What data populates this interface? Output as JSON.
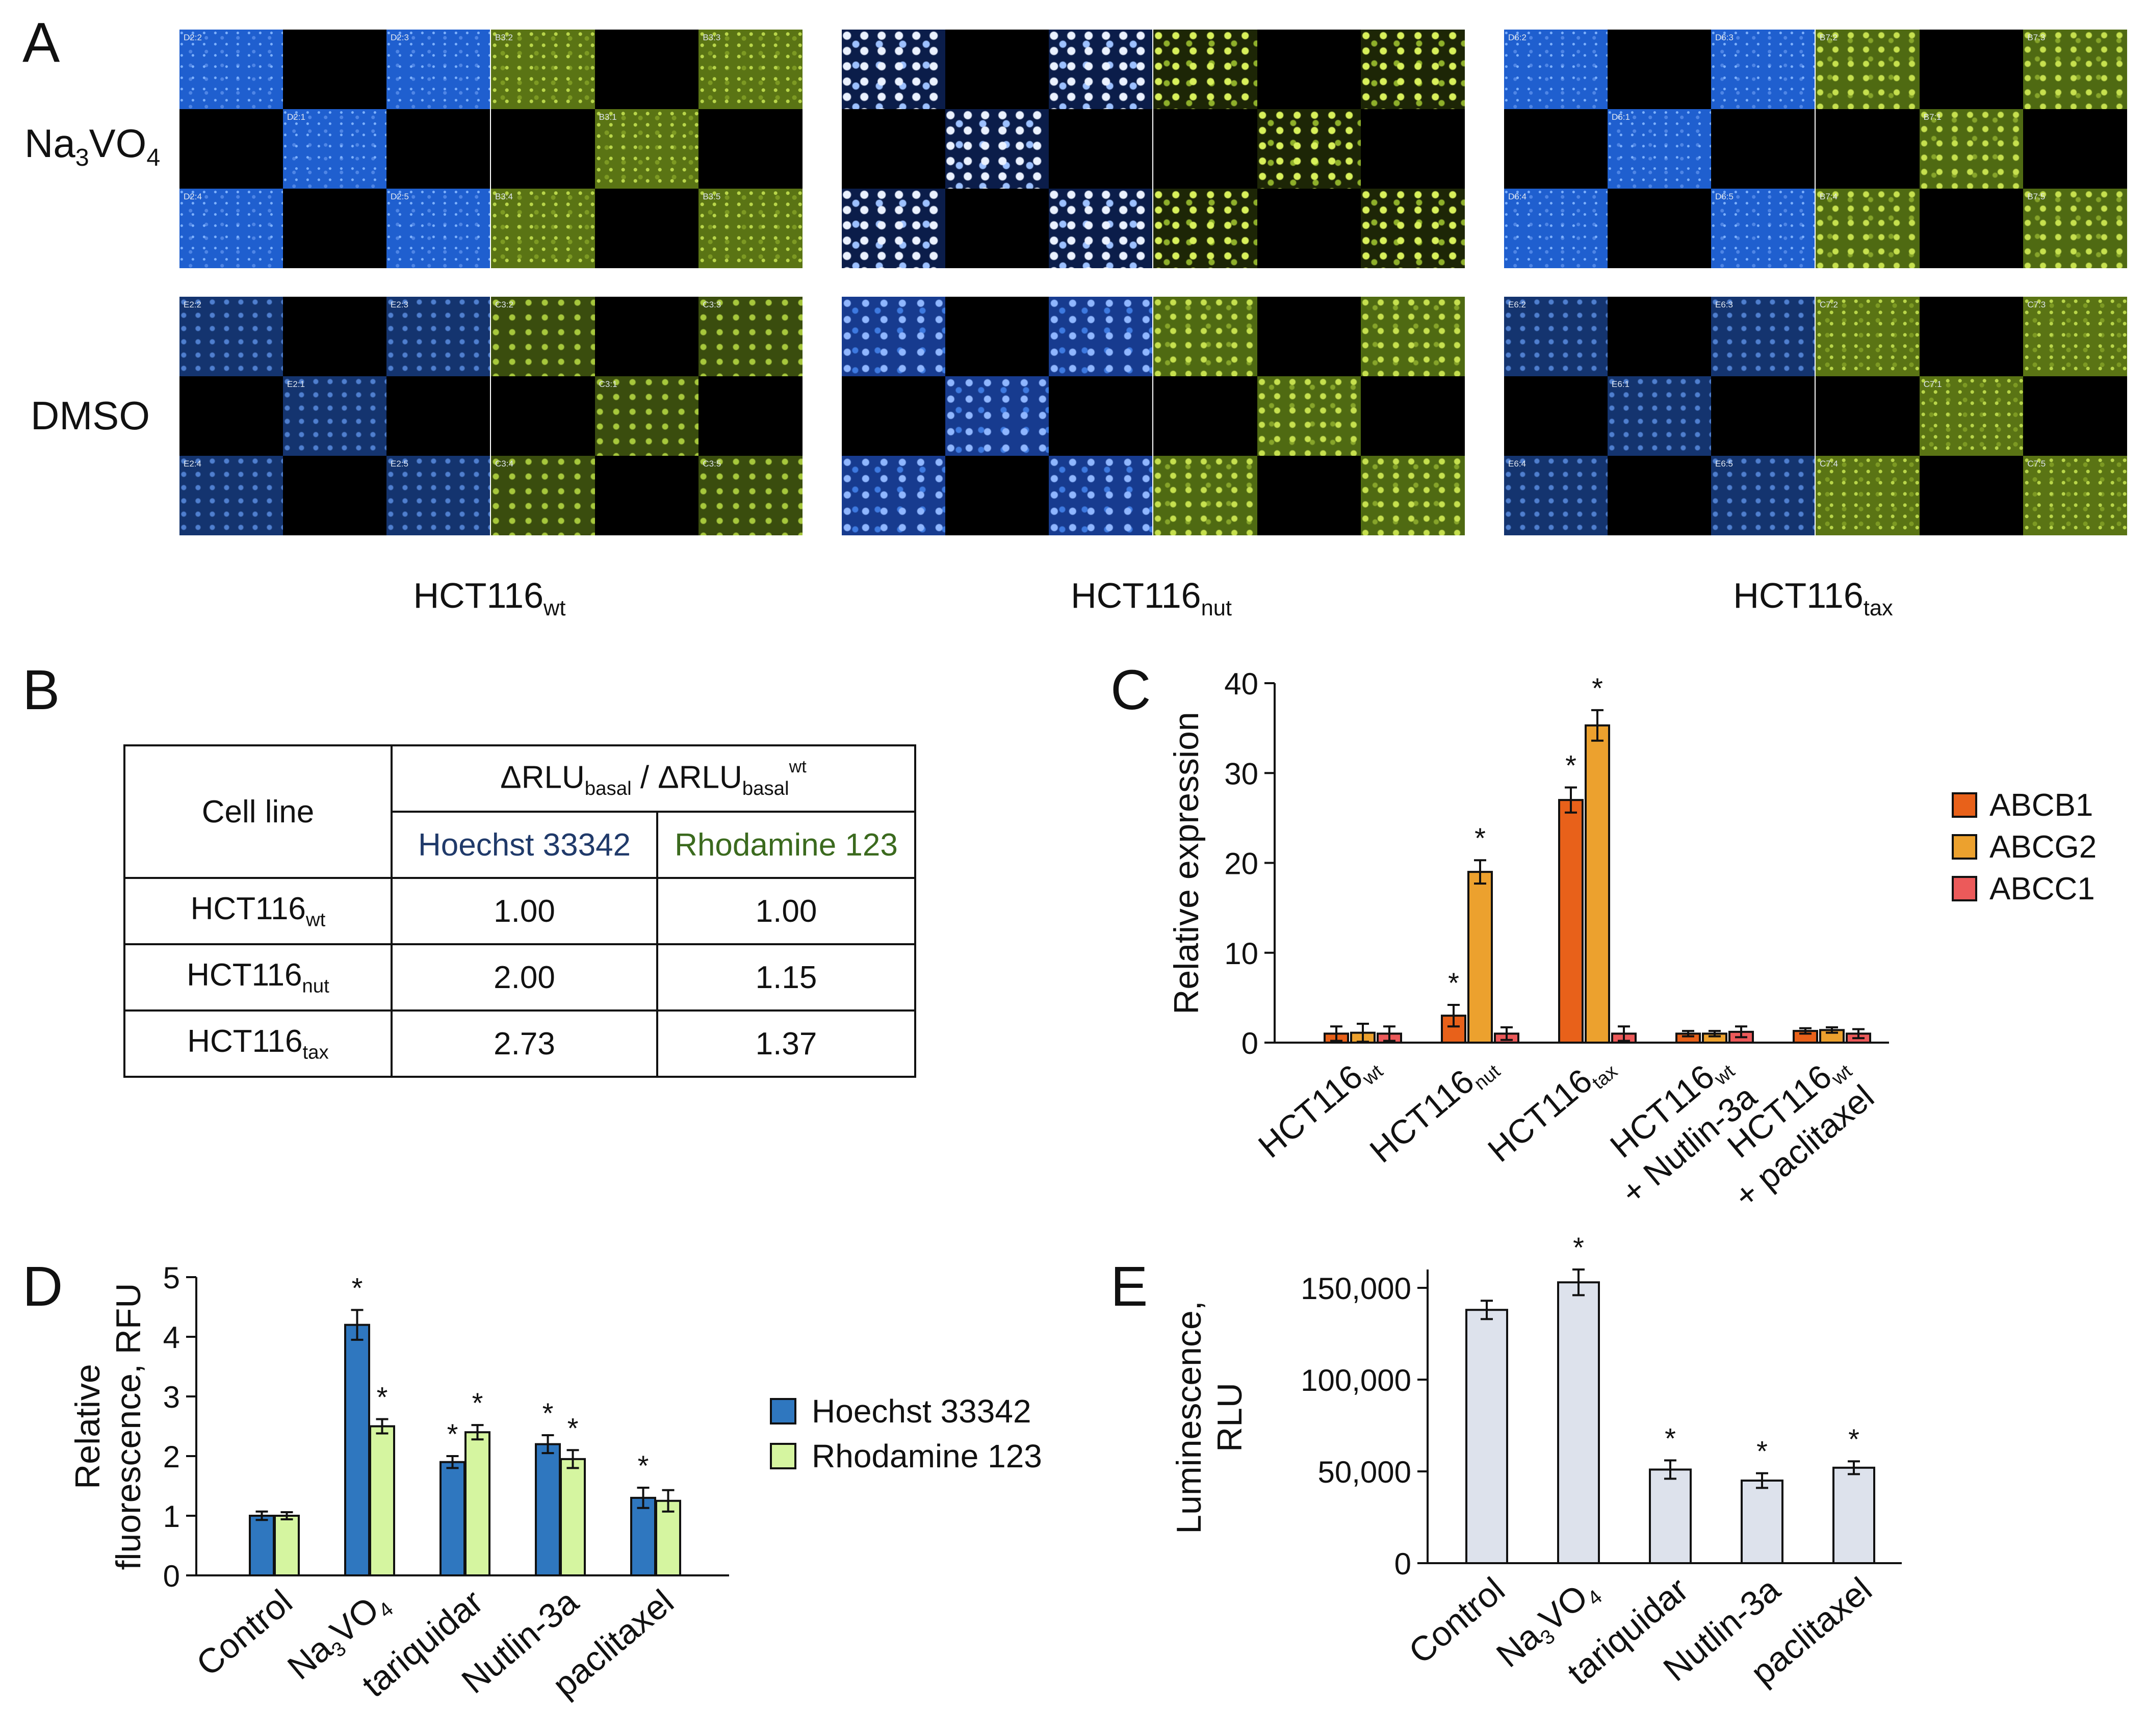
{
  "panel_labels": {
    "A": "A",
    "B": "B",
    "C": "C",
    "D": "D",
    "E": "E"
  },
  "panel_a": {
    "row_labels": {
      "na3vo4": {
        "base": "Na",
        "sub1": "3",
        "mid": "VO",
        "sub2": "4"
      },
      "dmso": "DMSO"
    },
    "col_labels": [
      {
        "base": "HCT116",
        "sub": "wt"
      },
      {
        "base": "HCT116",
        "sub": "nut"
      },
      {
        "base": "HCT116",
        "sub": "tax"
      }
    ],
    "tile_labels": {
      "wt_na_blue": [
        "D2:2",
        "D2:3",
        "D2:1",
        "D2:4",
        "D2:5"
      ],
      "wt_na_green": [
        "B3:2",
        "B3:3",
        "B3:1",
        "B3:4",
        "B3:5"
      ],
      "wt_dm_blue": [
        "E2:2",
        "E2:3",
        "E2:1",
        "E2:4",
        "E2:5"
      ],
      "wt_dm_green": [
        "C3:2",
        "C3:3",
        "C3:1",
        "C3:4",
        "C3:5"
      ],
      "tax_na_blue": [
        "D6:2",
        "D6:3",
        "D6:1",
        "D6:4",
        "D6:5"
      ],
      "tax_na_green": [
        "B7:2",
        "B7:3",
        "B7:1",
        "B7:4",
        "B7:5"
      ],
      "tax_dm_blue": [
        "E6:2",
        "E6:3",
        "E6:1",
        "E6:4",
        "E6:5"
      ],
      "tax_dm_green": [
        "C7:2",
        "C7:3",
        "C7:1",
        "C7:4",
        "C7:5"
      ]
    }
  },
  "panel_b": {
    "header_cell_line": "Cell line",
    "header_ratio": {
      "delta": "ΔRLU",
      "sub": "basal",
      "sep": " / ΔRLU",
      "sub2": "basal",
      "sup": "wt"
    },
    "header_hoechst": "Hoechst 33342",
    "header_rhodamine": "Rhodamine 123",
    "rows": [
      {
        "base": "HCT116",
        "sub": "wt",
        "hoechst": "1.00",
        "rhodamine": "1.00"
      },
      {
        "base": "HCT116",
        "sub": "nut",
        "hoechst": "2.00",
        "rhodamine": "1.15"
      },
      {
        "base": "HCT116",
        "sub": "tax",
        "hoechst": "2.73",
        "rhodamine": "1.37"
      }
    ],
    "colors": {
      "hoechst": "#203a6a",
      "rhodamine": "#3b6a1e"
    }
  },
  "chart_data": [
    {
      "id": "C",
      "type": "bar",
      "ylabel": "Relative expression",
      "ylim": [
        0,
        40
      ],
      "yticks": [
        "0",
        "10",
        "20",
        "30",
        "40"
      ],
      "categories": [
        {
          "base": "HCT116",
          "sub": "wt",
          "line2": ""
        },
        {
          "base": "HCT116",
          "sub": "nut",
          "line2": ""
        },
        {
          "base": "HCT116",
          "sub": "tax",
          "line2": ""
        },
        {
          "base": "HCT116",
          "sub": "wt",
          "line2": "+ Nutlin-3a"
        },
        {
          "base": "HCT116",
          "sub": "wt",
          "line2": "+ paclitaxel"
        }
      ],
      "series": [
        {
          "name": "ABCB1",
          "color": "#e8611a",
          "values": [
            1.0,
            3.0,
            27.0,
            1.0,
            1.3
          ],
          "errors": [
            0.8,
            1.2,
            1.4,
            0.3,
            0.3
          ],
          "sig": [
            "",
            "*",
            "*",
            "",
            ""
          ]
        },
        {
          "name": "ABCG2",
          "color": "#eca12e",
          "values": [
            1.1,
            19.0,
            35.3,
            1.0,
            1.4
          ],
          "errors": [
            1.0,
            1.3,
            1.7,
            0.3,
            0.3
          ],
          "sig": [
            "",
            "*",
            "*",
            "",
            ""
          ]
        },
        {
          "name": "ABCC1",
          "color": "#ec5a5a",
          "values": [
            1.0,
            1.0,
            1.0,
            1.2,
            1.0
          ],
          "errors": [
            0.8,
            0.7,
            0.8,
            0.6,
            0.5
          ],
          "sig": [
            "",
            "",
            "",
            "",
            ""
          ]
        }
      ],
      "legend": "right"
    },
    {
      "id": "D",
      "type": "bar",
      "ylabel_line1": "Relative",
      "ylabel_line2": "fluorescence, RFU",
      "ylim": [
        0,
        5
      ],
      "yticks": [
        "0",
        "1",
        "2",
        "3",
        "4",
        "5"
      ],
      "categories": [
        {
          "base": "Control",
          "sub": "",
          "mid": "",
          "sub2": ""
        },
        {
          "base": "Na",
          "sub": "3",
          "mid": "VO",
          "sub2": "4"
        },
        {
          "base": "tariquidar",
          "sub": "",
          "mid": "",
          "sub2": ""
        },
        {
          "base": "Nutlin-3a",
          "sub": "",
          "mid": "",
          "sub2": ""
        },
        {
          "base": "paclitaxel",
          "sub": "",
          "mid": "",
          "sub2": ""
        }
      ],
      "series": [
        {
          "name": "Hoechst 33342",
          "color": "#2f77bf",
          "values": [
            1.0,
            4.2,
            1.9,
            2.2,
            1.3
          ],
          "errors": [
            0.07,
            0.25,
            0.1,
            0.15,
            0.17
          ],
          "sig": [
            "",
            "*",
            "*",
            "*",
            "*"
          ]
        },
        {
          "name": "Rhodamine 123",
          "color": "#d5f5a0",
          "values": [
            1.0,
            2.5,
            2.4,
            1.95,
            1.25
          ],
          "errors": [
            0.06,
            0.12,
            0.12,
            0.15,
            0.18
          ],
          "sig": [
            "",
            "*",
            "*",
            "*",
            ""
          ]
        }
      ],
      "legend": "right"
    },
    {
      "id": "E",
      "type": "bar",
      "ylabel_line1": "Luminescence,",
      "ylabel_line2": "RLU",
      "ylim": [
        0,
        160000
      ],
      "yticks": [
        "0",
        "50,000",
        "100,000",
        "150,000"
      ],
      "ytick_values": [
        0,
        50000,
        100000,
        150000
      ],
      "categories": [
        {
          "base": "Control",
          "sub": "",
          "mid": "",
          "sub2": ""
        },
        {
          "base": "Na",
          "sub": "3",
          "mid": "VO",
          "sub2": "4"
        },
        {
          "base": "tariquidar",
          "sub": "",
          "mid": "",
          "sub2": ""
        },
        {
          "base": "Nutlin-3a",
          "sub": "",
          "mid": "",
          "sub2": ""
        },
        {
          "base": "paclitaxel",
          "sub": "",
          "mid": "",
          "sub2": ""
        }
      ],
      "series": [
        {
          "name": "Luminescence",
          "color": "#dde2ec",
          "values": [
            138000,
            153000,
            51000,
            45000,
            52000
          ],
          "errors": [
            5000,
            7000,
            5000,
            4000,
            3500
          ],
          "sig": [
            "",
            "*",
            "*",
            "*",
            "*"
          ]
        }
      ]
    }
  ]
}
